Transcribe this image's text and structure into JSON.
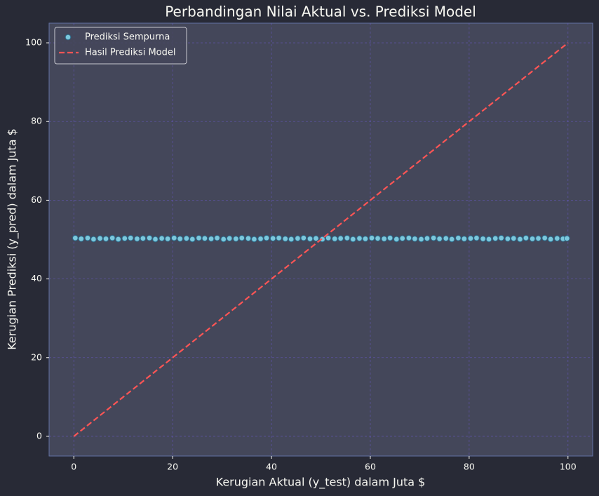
{
  "chart_data": {
    "type": "scatter",
    "title": "Perbandingan Nilai Aktual vs. Prediksi Model",
    "xlabel": "Kerugian Aktual (y_test) dalam Juta $",
    "ylabel": "Kerugian Prediksi (y_pred) dalam Juta $",
    "xlim": [
      -5,
      105
    ],
    "ylim": [
      -5,
      105
    ],
    "xticks": [
      0,
      20,
      40,
      60,
      80,
      100
    ],
    "yticks": [
      0,
      20,
      40,
      60,
      80,
      100
    ],
    "grid": true,
    "legend": "upper left",
    "series": [
      {
        "name": "Prediksi Sempurna",
        "kind": "scatter",
        "color": "#8be9fd",
        "edgecolor": "#2c6a8a",
        "x": [
          0.3,
          1.5,
          2.8,
          4.0,
          5.3,
          6.5,
          7.8,
          9.0,
          10.3,
          11.5,
          12.8,
          14.0,
          15.3,
          16.5,
          17.8,
          19.0,
          20.3,
          21.5,
          22.8,
          24.0,
          25.3,
          26.5,
          27.8,
          29.0,
          30.3,
          31.5,
          32.8,
          34.0,
          35.3,
          36.5,
          37.8,
          39.0,
          40.3,
          41.5,
          42.8,
          44.0,
          45.3,
          46.5,
          47.8,
          49.0,
          50.3,
          51.5,
          52.8,
          54.0,
          55.3,
          56.5,
          57.8,
          59.0,
          60.3,
          61.5,
          62.8,
          64.0,
          65.3,
          66.5,
          67.8,
          69.0,
          70.3,
          71.5,
          72.8,
          74.0,
          75.3,
          76.5,
          77.8,
          79.0,
          80.3,
          81.5,
          82.8,
          84.0,
          85.3,
          86.5,
          87.8,
          89.0,
          90.3,
          91.5,
          92.8,
          94.0,
          95.3,
          96.5,
          97.8,
          99.0,
          99.8
        ],
        "values": [
          50.4,
          50.2,
          50.4,
          50.1,
          50.3,
          50.2,
          50.4,
          50.1,
          50.3,
          50.4,
          50.2,
          50.3,
          50.4,
          50.1,
          50.3,
          50.2,
          50.4,
          50.2,
          50.3,
          50.1,
          50.4,
          50.3,
          50.2,
          50.4,
          50.1,
          50.3,
          50.2,
          50.4,
          50.3,
          50.1,
          50.2,
          50.4,
          50.3,
          50.4,
          50.2,
          50.1,
          50.3,
          50.4,
          50.2,
          50.3,
          50.1,
          50.4,
          50.2,
          50.3,
          50.4,
          50.1,
          50.3,
          50.2,
          50.4,
          50.3,
          50.2,
          50.4,
          50.1,
          50.3,
          50.4,
          50.2,
          50.1,
          50.3,
          50.4,
          50.2,
          50.3,
          50.1,
          50.4,
          50.2,
          50.3,
          50.4,
          50.2,
          50.1,
          50.3,
          50.4,
          50.2,
          50.3,
          50.1,
          50.4,
          50.2,
          50.3,
          50.4,
          50.1,
          50.3,
          50.2,
          50.3
        ]
      },
      {
        "name": "Hasil Prediksi Model",
        "kind": "line",
        "color": "#ff5555",
        "dashed": true,
        "x": [
          0,
          100
        ],
        "values": [
          0,
          100
        ]
      }
    ]
  }
}
